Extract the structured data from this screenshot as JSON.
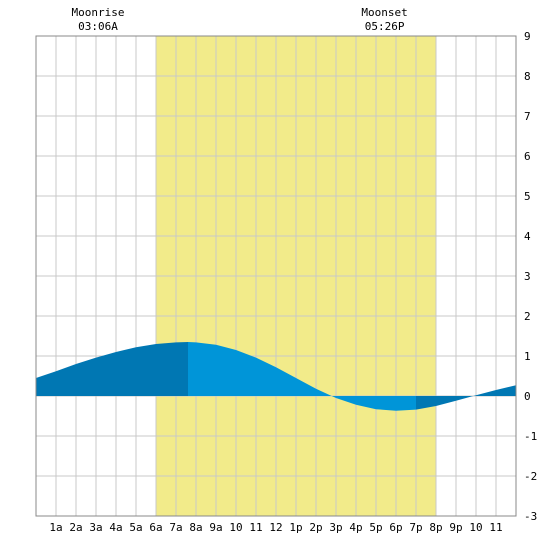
{
  "chart_data": {
    "type": "area",
    "title": "",
    "xlabel": "",
    "ylabel": "",
    "ylim": [
      -3,
      9
    ],
    "y_ticks": [
      "-3",
      "-2",
      "-1",
      "0",
      "1",
      "2",
      "3",
      "4",
      "5",
      "6",
      "7",
      "8",
      "9"
    ],
    "x_ticks": [
      "1a",
      "2a",
      "3a",
      "4a",
      "5a",
      "6a",
      "7a",
      "8a",
      "9a",
      "10",
      "11",
      "12",
      "1p",
      "2p",
      "3p",
      "4p",
      "5p",
      "6p",
      "7p",
      "8p",
      "9p",
      "10",
      "11"
    ],
    "xlim_hours": [
      0,
      24
    ],
    "grid": true,
    "daylight_hours": [
      6,
      20
    ],
    "annotations": [
      {
        "label": "Moonrise",
        "time": "03:06A",
        "hour": 3.1
      },
      {
        "label": "Moonset",
        "time": "05:26P",
        "hour": 17.43
      }
    ],
    "series": [
      {
        "x_hours": [
          0,
          1,
          2,
          3,
          4,
          5,
          6,
          7,
          7.6,
          8,
          9,
          10,
          11,
          12,
          13,
          14,
          15,
          16,
          17,
          18,
          19,
          20,
          21,
          22,
          23,
          24
        ],
        "values": [
          0.45,
          0.62,
          0.8,
          0.96,
          1.1,
          1.22,
          1.3,
          1.34,
          1.35,
          1.34,
          1.28,
          1.15,
          0.96,
          0.72,
          0.45,
          0.18,
          -0.05,
          -0.22,
          -0.33,
          -0.37,
          -0.34,
          -0.25,
          -0.12,
          0.02,
          0.15,
          0.27
        ]
      }
    ],
    "colors": {
      "daylight": "#f2eb8a",
      "tide_high_dark": "#0077b3",
      "tide_light": "#0095d8",
      "grid": "#c8c8c8"
    },
    "shading_breaks_hours": [
      7.6,
      19.0
    ]
  }
}
